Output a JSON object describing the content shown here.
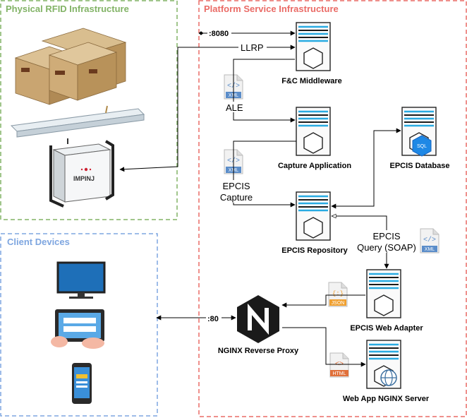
{
  "regions": {
    "physical": {
      "title": "Physical RFID Infrastructure",
      "color": "#82b366"
    },
    "platform": {
      "title": "Platform Service Infrastructure",
      "color": "#ea6b66"
    },
    "clients": {
      "title": "Client Devices",
      "color": "#7ea6e0"
    }
  },
  "nodes": {
    "fc_middleware": "F&C Middleware",
    "capture_application": "Capture Application",
    "epcis_database": "EPCIS Database",
    "epcis_repository": "EPCIS Repository",
    "epcis_web_adapter": "EPCIS Web Adapter",
    "nginx_reverse_proxy": "NGINX Reverse Proxy",
    "web_app_nginx_server": "Web App NGINX Server"
  },
  "edges": {
    "port_8080": ":8080",
    "llrp": "LLRP",
    "ale": "ALE",
    "epcis_capture_line1": "EPCIS",
    "epcis_capture_line2": "Capture",
    "epcis_query_line1": "EPCIS",
    "epcis_query_line2": "Query (SOAP)",
    "port_80": ":80"
  },
  "badges": {
    "xml": "XML",
    "json": "JSON",
    "html": "HTML",
    "sql": "SQL",
    "reader_brand": "IMPINJ"
  },
  "colors": {
    "server_accent": "#29abe2",
    "server_dark": "#1b1b1b",
    "xml_badge": "#5b8dc9",
    "json_badge": "#f0a030",
    "html_badge": "#e0703a",
    "sql_badge": "#1e88e5",
    "box_cardboard": "#c8a878"
  }
}
